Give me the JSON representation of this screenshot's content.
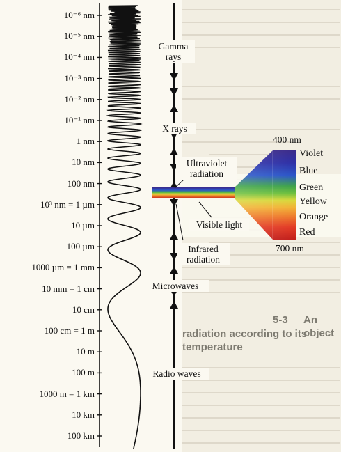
{
  "scale_labels": [
    "10⁻⁶ nm",
    "10⁻⁵ nm",
    "10⁻⁴ nm",
    "10⁻³ nm",
    "10⁻² nm",
    "10⁻¹ nm",
    "1 nm",
    "10 nm",
    "100 nm",
    "10³ nm = 1 µm",
    "10 µm",
    "100 µm",
    "1000 µm = 1 mm",
    "10 mm = 1 cm",
    "10 cm",
    "100 cm = 1 m",
    "10 m",
    "100 m",
    "1000 m = 1 km",
    "10 km",
    "100 km"
  ],
  "bands": [
    {
      "line1": "Gamma",
      "line2": "rays"
    },
    {
      "line1": "X rays"
    },
    {
      "line1": "Ultraviolet",
      "line2": "radiation"
    },
    {
      "line1": "Visible light"
    },
    {
      "line1": "Infrared",
      "line2": "radiation"
    },
    {
      "line1": "Microwaves"
    },
    {
      "line1": "Radio waves"
    }
  ],
  "visible_spectrum": {
    "top_label": "400 nm",
    "bottom_label": "700 nm",
    "colors": [
      "Violet",
      "Blue",
      "Green",
      "Yellow",
      "Orange",
      "Red"
    ]
  },
  "background": {
    "section_number": "5-3",
    "section_title_line1": "An object",
    "section_title_line2": "radiation according to its temperature"
  },
  "colors": {
    "page": "#f2eee2",
    "panel": "#fbf9f1",
    "ink": "#111111",
    "violet": "#3a2a8a",
    "blue": "#2a55c8",
    "green": "#4fb247",
    "yellow": "#e2d83a",
    "orange": "#ee7a2b",
    "red": "#c21e1a"
  }
}
